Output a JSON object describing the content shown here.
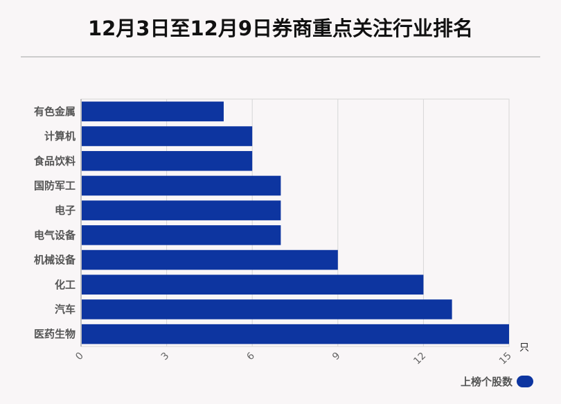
{
  "chart_data": {
    "type": "bar",
    "orientation": "horizontal",
    "title": "12月3日至12月9日券商重点关注行业排名",
    "categories": [
      "有色金属",
      "计算机",
      "食品饮料",
      "国防军工",
      "电子",
      "电气设备",
      "机械设备",
      "化工",
      "汽车",
      "医药生物"
    ],
    "series": [
      {
        "name": "上榜个股数",
        "values": [
          5,
          6,
          6,
          7,
          7,
          7,
          9,
          12,
          13,
          15
        ]
      }
    ],
    "x_ticks": [
      "0",
      "3",
      "6",
      "9",
      "12",
      "15"
    ],
    "xlim": [
      0,
      15
    ],
    "x_unit": "只",
    "grid": true,
    "legend_position": "bottom-right",
    "bar_color": "#0d35a0"
  }
}
